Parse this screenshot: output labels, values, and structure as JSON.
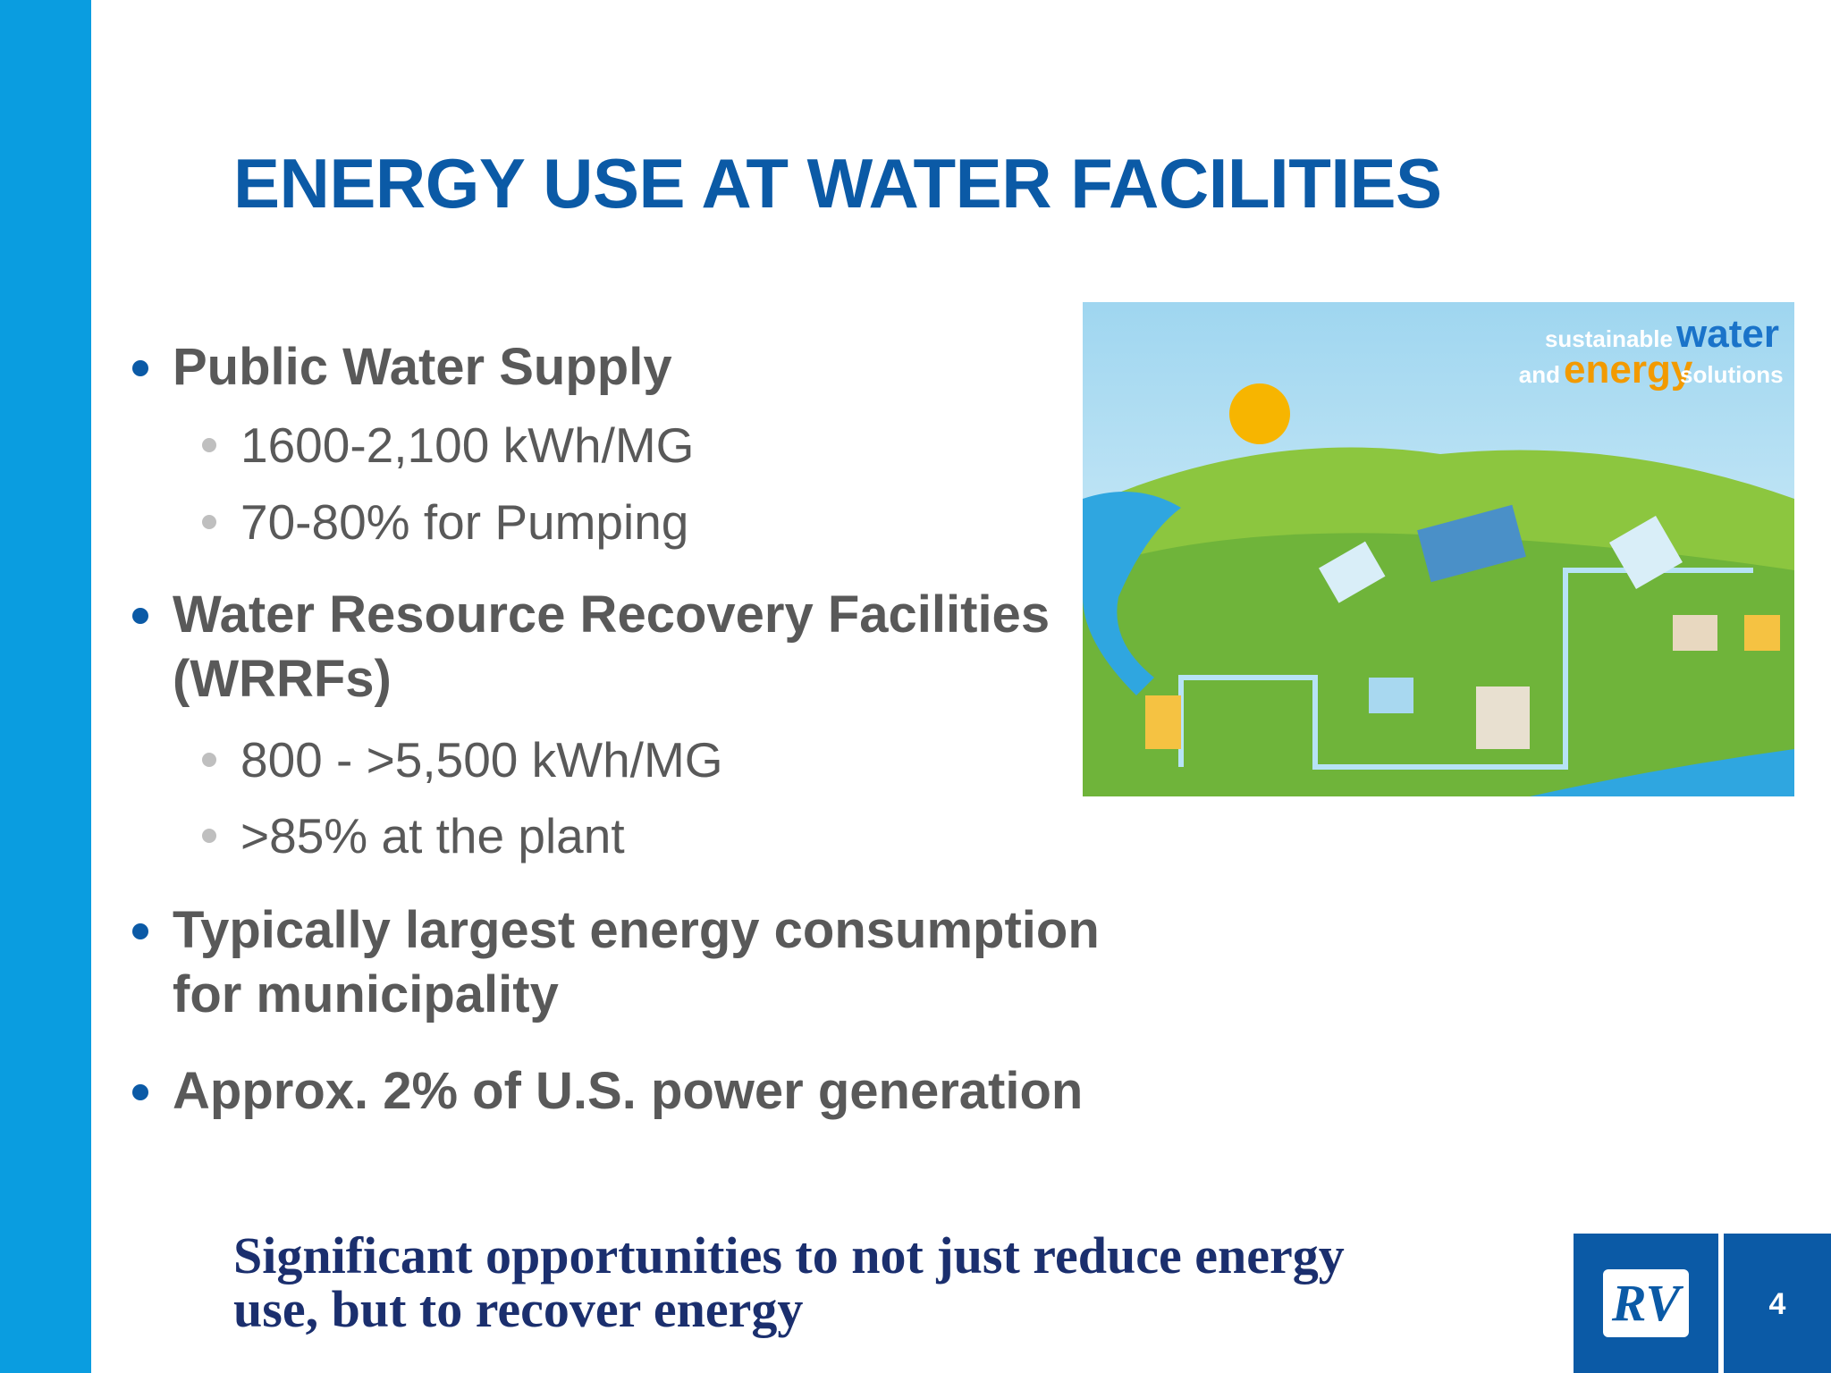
{
  "slide": {
    "title": "ENERGY USE AT WATER FACILITIES",
    "bullets": [
      {
        "text": "Public Water Supply",
        "sub": [
          "1600-2,100 kWh/MG",
          "70-80% for Pumping"
        ]
      },
      {
        "text": [
          "Water Resource Recovery Facilities",
          "(WRRFs)"
        ],
        "sub": [
          "800 - >5,500 kWh/MG",
          ">85% at the plant"
        ]
      },
      {
        "text": [
          "Typically largest energy consumption",
          "for municipality"
        ]
      },
      {
        "text": "Approx. 2% of U.S. power generation"
      }
    ],
    "image": {
      "heading": [
        "sustainable",
        "water",
        "and",
        "energy",
        "solutions"
      ]
    },
    "footer": [
      "Significant opportunities to not just reduce energy",
      "use, but to recover energy"
    ],
    "logo": "RV",
    "page_number": "4"
  }
}
